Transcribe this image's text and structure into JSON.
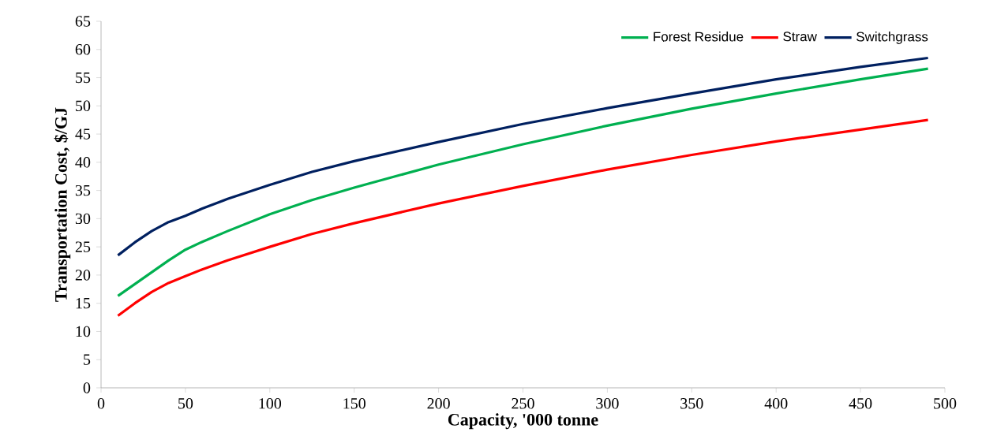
{
  "chart_data": {
    "type": "line",
    "xlabel": "Capacity,  '000 tonne",
    "ylabel": "Transportation Cost, $/GJ",
    "xlim": [
      0,
      500
    ],
    "xticks": [
      0,
      50,
      100,
      150,
      200,
      250,
      300,
      350,
      400,
      450,
      500
    ],
    "ylim": [
      0,
      65
    ],
    "yticks": [
      0,
      5,
      10,
      15,
      20,
      25,
      30,
      35,
      40,
      45,
      50,
      55,
      60,
      65
    ],
    "legend": "top right",
    "grid": false,
    "series": [
      {
        "name": "Forest Residue",
        "color": "#00b050",
        "x": [
          10,
          20,
          30,
          40,
          50,
          60,
          75,
          100,
          125,
          150,
          200,
          250,
          300,
          350,
          400,
          450,
          490
        ],
        "values": [
          16.3,
          18.4,
          20.5,
          22.6,
          24.5,
          25.9,
          27.8,
          30.8,
          33.3,
          35.5,
          39.6,
          43.2,
          46.5,
          49.5,
          52.2,
          54.7,
          56.6
        ]
      },
      {
        "name": "Straw",
        "color": "#ff0000",
        "x": [
          10,
          20,
          30,
          40,
          50,
          60,
          75,
          100,
          125,
          150,
          200,
          250,
          300,
          350,
          400,
          450,
          490
        ],
        "values": [
          12.8,
          15.0,
          17.0,
          18.6,
          19.8,
          21.0,
          22.6,
          25.0,
          27.3,
          29.2,
          32.7,
          35.8,
          38.7,
          41.3,
          43.7,
          45.8,
          47.5
        ]
      },
      {
        "name": "Switchgrass",
        "color": "#002060",
        "x": [
          10,
          20,
          30,
          40,
          50,
          60,
          75,
          100,
          125,
          150,
          200,
          250,
          300,
          350,
          400,
          450,
          490
        ],
        "values": [
          23.5,
          25.8,
          27.8,
          29.4,
          30.5,
          31.8,
          33.5,
          36.0,
          38.3,
          40.2,
          43.6,
          46.8,
          49.6,
          52.2,
          54.7,
          56.9,
          58.5
        ]
      }
    ]
  }
}
